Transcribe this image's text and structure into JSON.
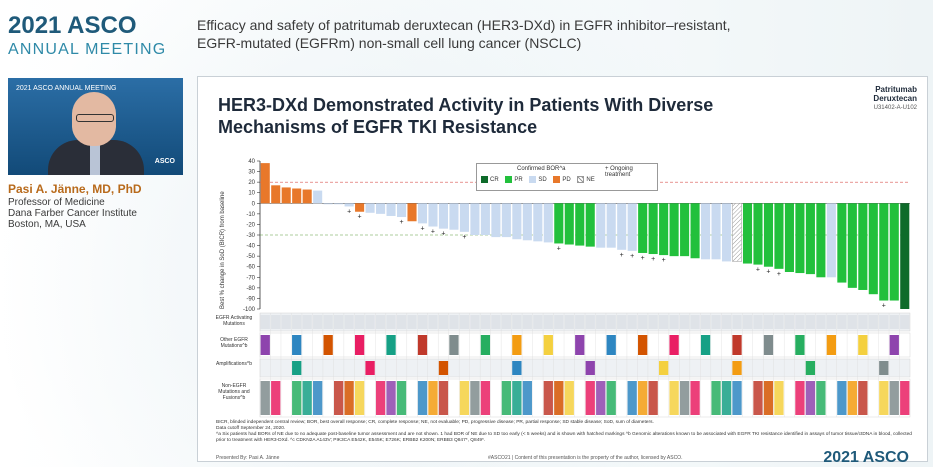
{
  "header": {
    "year": "2021",
    "brand": "ASCO",
    "meeting": "ANNUAL MEETING",
    "talk_title_line1": "Efficacy and safety of patritumab deruxtecan (HER3-DXd) in EGFR inhibitor–resistant,",
    "talk_title_line2": "EGFR-mutated (EGFRm) non-small cell lung cancer (NSCLC)"
  },
  "speaker": {
    "video_logo": "2021 ASCO ANNUAL MEETING",
    "video_badge": "ASCO",
    "name": "Pasi A. Jänne, MD, PhD",
    "role": "Professor of Medicine",
    "org": "Dana Farber Cancer Institute",
    "location": "Boston, MA, USA"
  },
  "slide": {
    "title": "HER3-DXd Demonstrated Activity in Patients With Diverse Mechanisms of EGFR TKI Resistance",
    "brand_line1": "Patritumab",
    "brand_line2": "Deruxtecan",
    "code": "U31402-A-U102",
    "ylabel": "Best % change in SoD (BICR) from baseline",
    "legend_title": "Confirmed BOR^a",
    "legend_ongoing": "+ Ongoing treatment",
    "row_labels": [
      "EGFR Activating Mutations",
      "Other EGFR Mutations^b",
      "Amplifications^b",
      "Non-EGFR Mutations and Fusions^b"
    ],
    "footnote1": "BICR, blinded independent central review; BOR, best overall response; CR, complete response; NE, not evaluable; PD, progressive disease; PR, partial response; SD stable disease; SoD, sum of diameters.",
    "footnote2": "Data cutoff September 24, 2020.",
    "footnote3": "^a Six patients had BORs of NE due to no adequate post-baseline tumor assessment and are not shown. 1 had BOR of NE due to SD too early (< 5 weeks) and is shown with hatched markings ^b Genomic alterations known to be associated with EGFR TKI resistance identified in assays of tumor tissue/ctDNA in blood, collected prior to treatment with HER3-DXd. ^c CDKN2A A143V; PIK3CA E542K, E545K; E726K; ERBB2 K200N; ERBB3 Q847*, Q849*.",
    "presenter": "Presented By: Pasi A. Jänne",
    "hashtag": "#ASCO21  |  Content of this presentation is the property of the author, licensed by ASCO."
  },
  "footer": {
    "brand": "2021 ASCO"
  },
  "colors": {
    "CR": "#0e6b2a",
    "PR": "#22c03c",
    "SD": "#c9daf0",
    "PD": "#e8782a",
    "NE": "#ffffff"
  },
  "chart_data": {
    "type": "bar",
    "xlabel": "",
    "ylabel": "Best % change in SoD (BICR) from baseline",
    "ylim": [
      -100,
      40
    ],
    "yticks": [
      40,
      30,
      20,
      10,
      0,
      -10,
      -20,
      -30,
      -40,
      -50,
      -60,
      -70,
      -80,
      -90,
      -100
    ],
    "reference_lines": [
      20,
      -30
    ],
    "legend": [
      "CR",
      "PR",
      "SD",
      "PD",
      "NE"
    ],
    "categories_bor": [
      "PD",
      "PD",
      "PD",
      "PD",
      "PD",
      "SD",
      "SD",
      "SD",
      "SD",
      "PD",
      "SD",
      "SD",
      "SD",
      "SD",
      "PD",
      "SD",
      "SD",
      "SD",
      "SD",
      "SD",
      "SD",
      "SD",
      "SD",
      "SD",
      "SD",
      "SD",
      "SD",
      "SD",
      "PR",
      "PR",
      "PR",
      "PR",
      "SD",
      "SD",
      "SD",
      "SD",
      "PR",
      "PR",
      "PR",
      "PR",
      "PR",
      "PR",
      "SD",
      "SD",
      "SD",
      "NE",
      "PR",
      "PR",
      "PR",
      "PR",
      "PR",
      "PR",
      "PR",
      "PR",
      "SD",
      "PR",
      "PR",
      "PR",
      "PR",
      "PR",
      "PR",
      "CR"
    ],
    "values": [
      38,
      17,
      15,
      14,
      13,
      12,
      0,
      0,
      -3,
      -8,
      -9,
      -10,
      -12,
      -13,
      -17,
      -19,
      -22,
      -24,
      -25,
      -27,
      -30,
      -30,
      -32,
      -32,
      -34,
      -35,
      -36,
      -37,
      -38,
      -39,
      -40,
      -41,
      -42,
      -42,
      -44,
      -45,
      -47,
      -48,
      -49,
      -50,
      -50,
      -52,
      -53,
      -53,
      -55,
      -55,
      -57,
      -58,
      -60,
      -62,
      -65,
      -66,
      -67,
      -70,
      -70,
      -75,
      -80,
      -82,
      -86,
      -92,
      -92,
      -100
    ],
    "ongoing": [
      false,
      false,
      false,
      false,
      false,
      false,
      false,
      false,
      true,
      true,
      false,
      false,
      false,
      true,
      false,
      true,
      true,
      true,
      false,
      true,
      false,
      false,
      false,
      false,
      false,
      false,
      false,
      false,
      true,
      false,
      false,
      false,
      false,
      false,
      true,
      true,
      true,
      true,
      true,
      false,
      false,
      false,
      false,
      false,
      false,
      false,
      false,
      true,
      true,
      true,
      false,
      false,
      false,
      false,
      false,
      false,
      false,
      false,
      false,
      true,
      false,
      true
    ]
  }
}
